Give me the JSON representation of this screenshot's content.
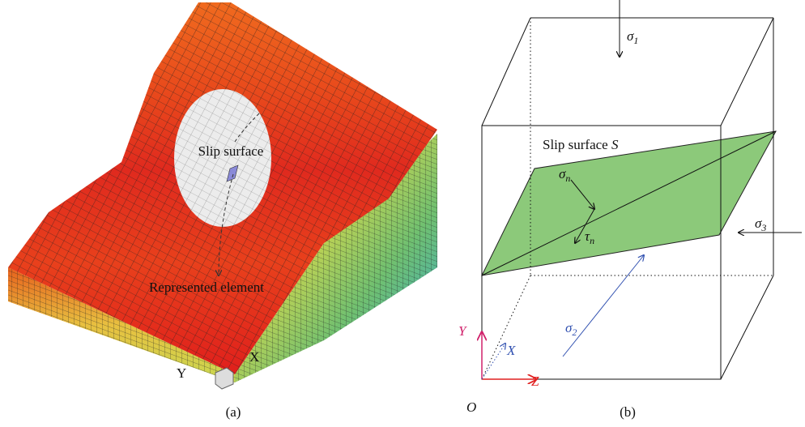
{
  "panel_a": {
    "slip_label": "Slip surface",
    "element_label": "Represented element",
    "axis_x": "X",
    "axis_y": "Y",
    "caption": "(a)"
  },
  "panel_b": {
    "sigma1": {
      "symbol": "σ",
      "subscript": "1"
    },
    "sigma2": {
      "symbol": "σ",
      "subscript": "2"
    },
    "sigma3": {
      "symbol": "σ",
      "subscript": "3"
    },
    "sigma_n": {
      "symbol": "σ",
      "subscript": "n"
    },
    "tau_n": {
      "symbol": "τ",
      "subscript": "n"
    },
    "slip_label": "Slip surface",
    "slip_symbol": "S",
    "axis_x": "X",
    "axis_y": "Y",
    "axis_z": "Z",
    "origin": "O",
    "caption": "(b)"
  }
}
